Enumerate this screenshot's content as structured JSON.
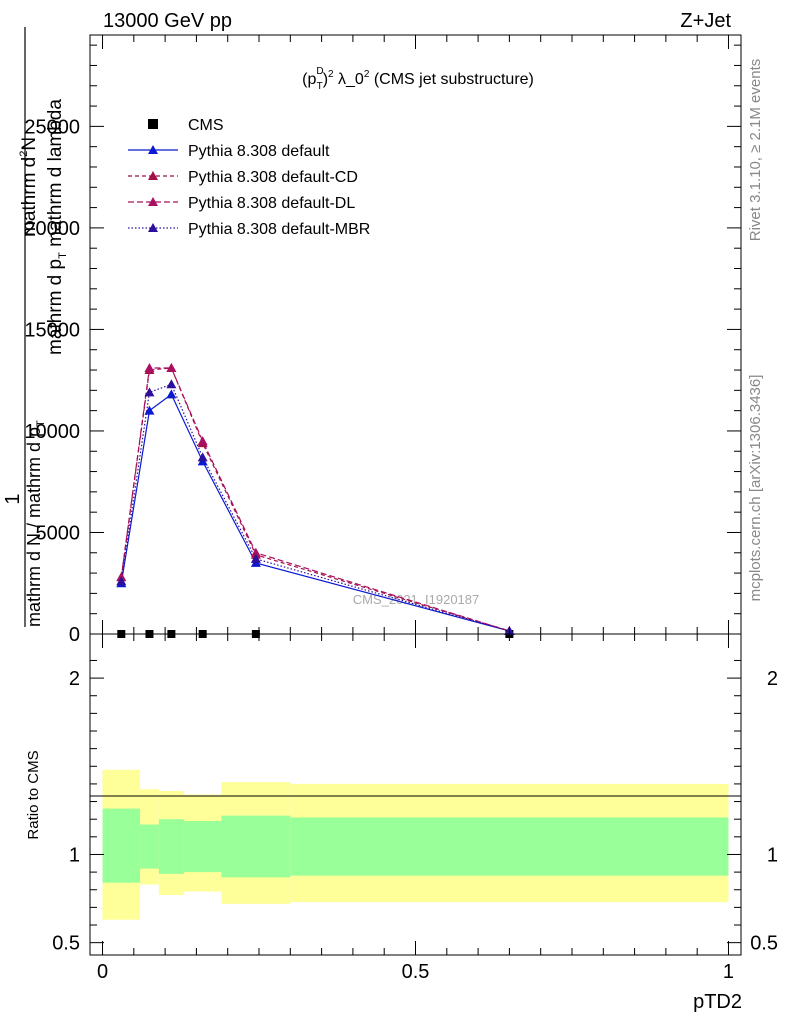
{
  "header": {
    "left": "13000 GeV pp",
    "right": "Z+Jet"
  },
  "side_labels": {
    "rivet": "Rivet 3.1.10, ≥ 2.1M events",
    "mcplots": "mcplots.cern.ch [arXiv:1306.3436]"
  },
  "watermark": "CMS_2021_I1920187",
  "chart_data": {
    "type": "line",
    "title": {
      "prefix": "(p",
      "sup1": "D",
      "sub1": "T",
      "close": ")",
      "sup2": "2",
      "middle": " λ_0",
      "sup3": "2",
      "suffix": " (CMS jet substructure)"
    },
    "ylabel": {
      "part1": "1",
      "part2": "mathrm d N / mathrm d p",
      "part2_sub": "T",
      "part3": "mathrm d",
      "part3_sup": "2",
      "part3_tail": "N",
      "part4": "mathrm d p",
      "part4_sub": "T",
      "part4_tail": " mathrm d lambda"
    },
    "xlabel": "pTD2",
    "ratio_ylabel": "Ratio to CMS",
    "xlim": [
      -0.02,
      1.02
    ],
    "ylim_main": [
      0,
      29500
    ],
    "ylim_ratio": [
      0.43,
      2.25
    ],
    "main_yticks": [
      {
        "v": 0,
        "label": "0"
      },
      {
        "v": 5000,
        "label": "5000"
      },
      {
        "v": 10000,
        "label": "10000"
      },
      {
        "v": 15000,
        "label": "15000"
      },
      {
        "v": 20000,
        "label": "20000"
      },
      {
        "v": 25000,
        "label": "25000"
      }
    ],
    "ratio_yticks": [
      {
        "v": 0.5,
        "label": "0.5"
      },
      {
        "v": 1,
        "label": "1"
      },
      {
        "v": 2,
        "label": "2"
      }
    ],
    "xticks": [
      {
        "v": 0,
        "label": "0"
      },
      {
        "v": 0.5,
        "label": "0.5"
      },
      {
        "v": 1,
        "label": "1"
      }
    ],
    "x": [
      0.03,
      0.075,
      0.11,
      0.16,
      0.245,
      0.65
    ],
    "bin_edges": [
      0,
      0.06,
      0.09,
      0.13,
      0.19,
      0.3,
      1.0
    ],
    "series": [
      {
        "name": "CMS",
        "kind": "data",
        "color": "#000000",
        "values": [
          0,
          0,
          0,
          0,
          0,
          0
        ]
      },
      {
        "name": "Pythia 8.308 default",
        "kind": "mc",
        "color": "#0b1ad0",
        "dash": "",
        "values": [
          2500,
          11000,
          11800,
          8500,
          3500,
          150
        ]
      },
      {
        "name": "Pythia 8.308 default-CD",
        "kind": "mc",
        "color": "#a30f48",
        "dash": "4,3",
        "values": [
          2800,
          13000,
          13100,
          9400,
          3900,
          150
        ]
      },
      {
        "name": "Pythia 8.308 default-DL",
        "kind": "mc",
        "color": "#aa1060",
        "dash": "6,3",
        "values": [
          2800,
          13100,
          13100,
          9500,
          4000,
          150
        ]
      },
      {
        "name": "Pythia 8.308 default-MBR",
        "kind": "mc",
        "color": "#2c109d",
        "dash": "1.5,2",
        "values": [
          2600,
          11900,
          12300,
          8700,
          3700,
          150
        ]
      }
    ],
    "ratio_bands": {
      "yellow_color": "#ffff99",
      "green_color": "#99ff99",
      "yellow_lo": [
        0.63,
        0.83,
        0.77,
        0.79,
        0.72,
        0.73
      ],
      "yellow_hi": [
        1.48,
        1.37,
        1.36,
        1.34,
        1.41,
        1.4
      ],
      "green_lo": [
        0.84,
        0.92,
        0.89,
        0.9,
        0.87,
        0.88
      ],
      "green_hi": [
        1.26,
        1.17,
        1.2,
        1.19,
        1.22,
        1.21
      ]
    }
  }
}
